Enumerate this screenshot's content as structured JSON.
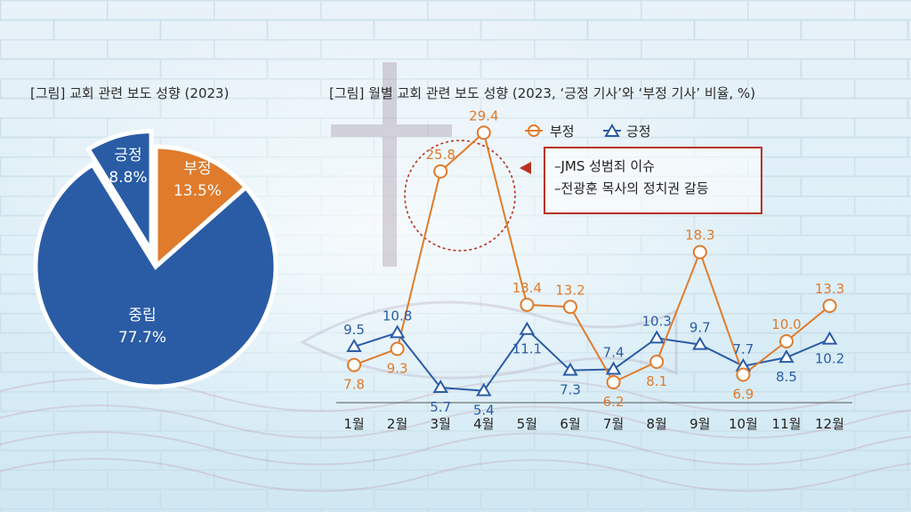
{
  "colors": {
    "negative": "#e07b2c",
    "positive": "#2a5ca6",
    "neutral": "#2a5ca6",
    "callout_border": "#b8321f"
  },
  "pie_title": "[그림] 교회 관련 보도 성향 (2023)",
  "line_title": "[그림] 월별 교회 관련 보도 성향 (2023, ‘긍정 기사’와 ‘부정 기사’ 비율, %)",
  "callout": {
    "lines": [
      "–JMS 성범죄 이슈",
      "–전광훈 목사의 정치권 갈등"
    ]
  },
  "chart_data": [
    {
      "type": "pie",
      "title": "[그림] 교회 관련 보도 성향 (2023)",
      "slices": [
        {
          "label": "부정",
          "value": 13.5,
          "value_label": "13.5%",
          "color": "#e07b2c",
          "exploded": false
        },
        {
          "label": "중립",
          "value": 77.7,
          "value_label": "77.7%",
          "color": "#2a5ca6",
          "exploded": false
        },
        {
          "label": "긍정",
          "value": 8.8,
          "value_label": "8.8%",
          "color": "#2a5ca6",
          "exploded": true
        }
      ]
    },
    {
      "type": "line",
      "title": "[그림] 월별 교회 관련 보도 성향 (2023, ‘긍정 기사’와 ‘부정 기사’ 비율, %)",
      "categories": [
        "1월",
        "2월",
        "3월",
        "4월",
        "5월",
        "6월",
        "7월",
        "8월",
        "9월",
        "10월",
        "11월",
        "12월"
      ],
      "ylim": [
        0,
        32
      ],
      "legend": "top",
      "series": [
        {
          "name": "부정",
          "marker": "circle",
          "color": "#e07b2c",
          "values": [
            7.8,
            9.3,
            25.8,
            29.4,
            13.4,
            13.2,
            6.2,
            8.1,
            18.3,
            6.9,
            10.0,
            13.3
          ],
          "labels": [
            "7.8",
            "9.3",
            "25.8",
            "29.4",
            "13.4",
            "13.2",
            "6.2",
            "8.1",
            "18.3",
            "6.9",
            "10.0",
            "13.3"
          ]
        },
        {
          "name": "긍정",
          "marker": "triangle",
          "color": "#2a5ca6",
          "values": [
            9.5,
            10.8,
            5.7,
            5.4,
            11.1,
            7.3,
            7.4,
            10.3,
            9.7,
            7.7,
            8.5,
            10.2
          ],
          "labels": [
            "9.5",
            "10.8",
            "5.7",
            "5.4",
            "11.1",
            "7.3",
            "7.4",
            "10.3",
            "9.7",
            "7.7",
            "8.5",
            "10.2"
          ]
        }
      ]
    }
  ]
}
